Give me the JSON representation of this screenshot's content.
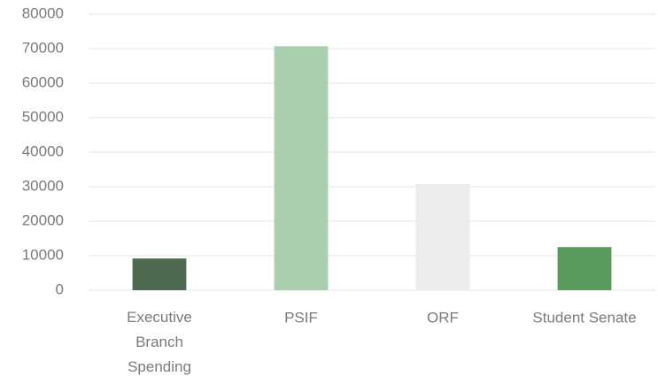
{
  "chart_data": {
    "type": "bar",
    "categories": [
      "Executive Branch Spending",
      "PSIF",
      "ORF",
      "Student Senate"
    ],
    "values": [
      9200,
      70700,
      30800,
      12500
    ],
    "colors": [
      "#4e6b52",
      "#a9cfae",
      "#ececec",
      "#5a9a5e"
    ],
    "ylim": [
      0,
      80000
    ],
    "yticks": [
      0,
      10000,
      20000,
      30000,
      40000,
      50000,
      60000,
      70000,
      80000
    ],
    "grid": true
  }
}
